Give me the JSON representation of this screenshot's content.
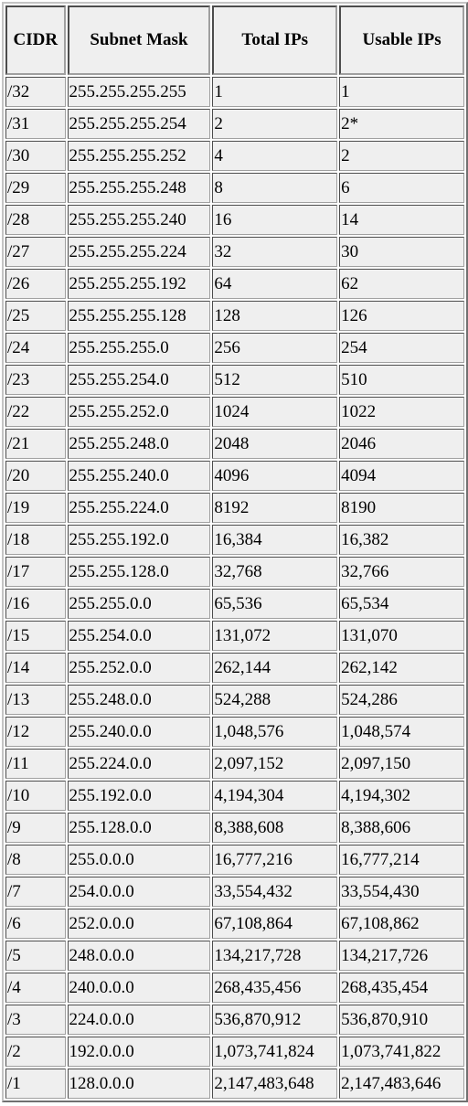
{
  "table": {
    "headers": [
      "CIDR",
      "Subnet Mask",
      "Total IPs",
      "Usable IPs"
    ],
    "rows": [
      [
        "/32",
        "255.255.255.255",
        "1",
        "1"
      ],
      [
        "/31",
        "255.255.255.254",
        "2",
        "2*"
      ],
      [
        "/30",
        "255.255.255.252",
        "4",
        "2"
      ],
      [
        "/29",
        "255.255.255.248",
        "8",
        "6"
      ],
      [
        "/28",
        "255.255.255.240",
        "16",
        "14"
      ],
      [
        "/27",
        "255.255.255.224",
        "32",
        "30"
      ],
      [
        "/26",
        "255.255.255.192",
        "64",
        "62"
      ],
      [
        "/25",
        "255.255.255.128",
        "128",
        "126"
      ],
      [
        "/24",
        "255.255.255.0",
        "256",
        "254"
      ],
      [
        "/23",
        "255.255.254.0",
        "512",
        "510"
      ],
      [
        "/22",
        "255.255.252.0",
        "1024",
        "1022"
      ],
      [
        "/21",
        "255.255.248.0",
        "2048",
        "2046"
      ],
      [
        "/20",
        "255.255.240.0",
        "4096",
        "4094"
      ],
      [
        "/19",
        "255.255.224.0",
        "8192",
        "8190"
      ],
      [
        "/18",
        "255.255.192.0",
        "16,384",
        "16,382"
      ],
      [
        "/17",
        "255.255.128.0",
        "32,768",
        "32,766"
      ],
      [
        "/16",
        "255.255.0.0",
        "65,536",
        "65,534"
      ],
      [
        "/15",
        "255.254.0.0",
        "131,072",
        "131,070"
      ],
      [
        "/14",
        "255.252.0.0",
        "262,144",
        "262,142"
      ],
      [
        "/13",
        "255.248.0.0",
        "524,288",
        "524,286"
      ],
      [
        "/12",
        "255.240.0.0",
        "1,048,576",
        "1,048,574"
      ],
      [
        "/11",
        "255.224.0.0",
        "2,097,152",
        "2,097,150"
      ],
      [
        "/10",
        "255.192.0.0",
        "4,194,304",
        "4,194,302"
      ],
      [
        "/9",
        "255.128.0.0",
        "8,388,608",
        "8,388,606"
      ],
      [
        "/8",
        "255.0.0.0",
        "16,777,216",
        "16,777,214"
      ],
      [
        "/7",
        "254.0.0.0",
        "33,554,432",
        "33,554,430"
      ],
      [
        "/6",
        "252.0.0.0",
        "67,108,864",
        "67,108,862"
      ],
      [
        "/5",
        "248.0.0.0",
        "134,217,728",
        "134,217,726"
      ],
      [
        "/4",
        "240.0.0.0",
        "268,435,456",
        "268,435,454"
      ],
      [
        "/3",
        "224.0.0.0",
        "536,870,912",
        "536,870,910"
      ],
      [
        "/2",
        "192.0.0.0",
        "1,073,741,824",
        "1,073,741,822"
      ],
      [
        "/1",
        "128.0.0.0",
        "2,147,483,648",
        "2,147,483,646"
      ]
    ]
  }
}
